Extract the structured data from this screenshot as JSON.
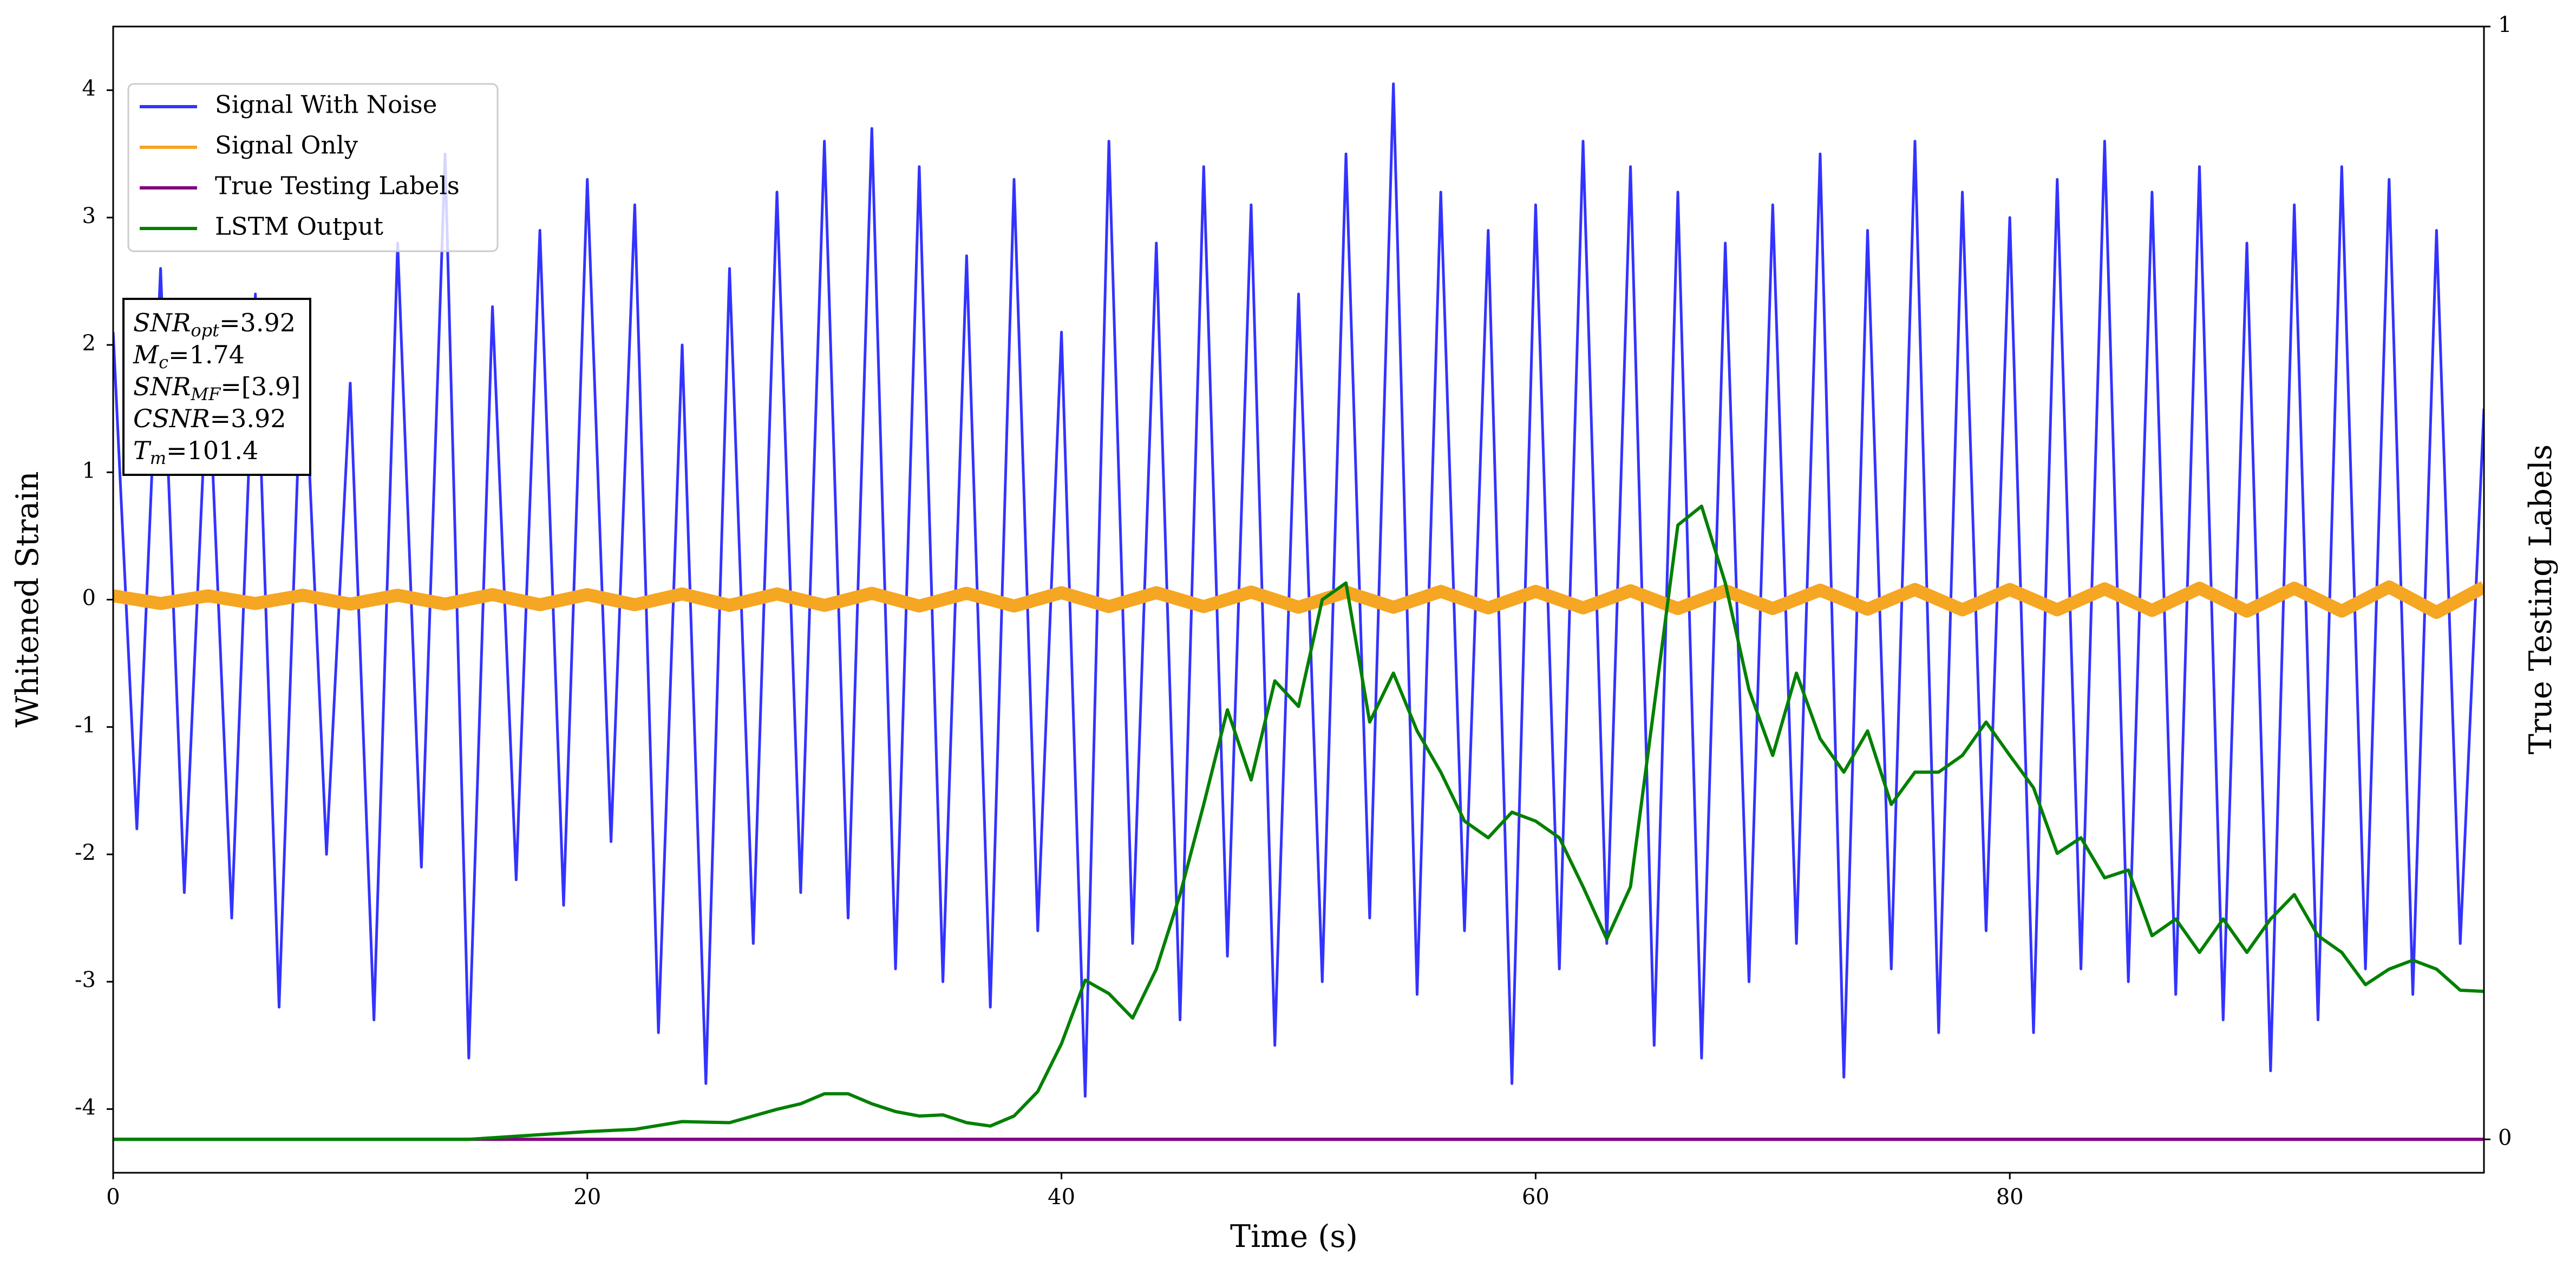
{
  "chart_data": {
    "type": "line",
    "xlabel": "Time (s)",
    "ylabel": "Whitened Strain",
    "y2label": "True Testing Labels",
    "xlim": [
      0,
      100
    ],
    "ylim": [
      -4.5,
      4.5
    ],
    "y2lim": [
      -0.03,
      1
    ],
    "xticks": [
      0,
      20,
      40,
      60,
      80
    ],
    "yticks": [
      -4,
      -3,
      -2,
      -1,
      0,
      1,
      2,
      3,
      4
    ],
    "y2ticks": [
      0,
      1
    ],
    "legend": "upper left",
    "series": [
      {
        "name": "Signal With Noise",
        "color": "#3333ff",
        "x": [
          0,
          1,
          2,
          3,
          4,
          5,
          6,
          7,
          8,
          9,
          10,
          11,
          12,
          13,
          14,
          15,
          16,
          17,
          18,
          19,
          20,
          21,
          22,
          23,
          24,
          25,
          26,
          27,
          28,
          29,
          30,
          31,
          32,
          33,
          34,
          35,
          36,
          37,
          38,
          39,
          40,
          41,
          42,
          43,
          44,
          45,
          46,
          47,
          48,
          49,
          50,
          51,
          52,
          53,
          54,
          55,
          56,
          57,
          58,
          59,
          60,
          61,
          62,
          63,
          64,
          65,
          66,
          67,
          68,
          69,
          70,
          71,
          72,
          73,
          74,
          75,
          76,
          77,
          78,
          79,
          80,
          81,
          82,
          83,
          84,
          85,
          86,
          87,
          88,
          89,
          90,
          91,
          92,
          93,
          94,
          95,
          96,
          97,
          98,
          99,
          100
        ],
        "values": [
          2.1,
          -1.8,
          2.6,
          -2.3,
          1.9,
          -2.5,
          2.4,
          -3.2,
          2.2,
          -2.0,
          1.7,
          -3.3,
          2.8,
          -2.1,
          3.5,
          -3.6,
          2.3,
          -2.2,
          2.9,
          -2.4,
          3.3,
          -1.9,
          3.1,
          -3.4,
          2.0,
          -3.8,
          2.6,
          -2.7,
          3.2,
          -2.3,
          3.6,
          -2.5,
          3.7,
          -2.9,
          3.4,
          -3.0,
          2.7,
          -3.2,
          3.3,
          -2.6,
          2.1,
          -3.9,
          3.6,
          -2.7,
          2.8,
          -3.3,
          3.4,
          -2.8,
          3.1,
          -3.5,
          2.4,
          -3.0,
          3.5,
          -2.5,
          4.05,
          -3.1,
          3.2,
          -2.6,
          2.9,
          -3.8,
          3.1,
          -2.9,
          3.6,
          -2.7,
          3.4,
          -3.5,
          3.2,
          -3.6,
          2.8,
          -3.0,
          3.1,
          -2.7,
          3.5,
          -3.75,
          2.9,
          -2.9,
          3.6,
          -3.4,
          3.2,
          -2.6,
          3.0,
          -3.4,
          3.3,
          -2.9,
          3.6,
          -3.0,
          3.2,
          -3.1,
          3.4,
          -3.3,
          2.8,
          -3.7,
          3.1,
          -3.3,
          3.4,
          -2.9,
          3.3,
          -3.1,
          2.9,
          -2.7,
          1.5
        ]
      },
      {
        "name": "Signal Only",
        "color": "#f5a623",
        "x": [
          0,
          2,
          4,
          6,
          8,
          10,
          12,
          14,
          16,
          18,
          20,
          22,
          24,
          26,
          28,
          30,
          32,
          34,
          36,
          38,
          40,
          42,
          44,
          46,
          48,
          50,
          52,
          54,
          56,
          58,
          60,
          62,
          64,
          66,
          68,
          70,
          72,
          74,
          76,
          78,
          80,
          82,
          84,
          86,
          88,
          90,
          92,
          94,
          96,
          98,
          100
        ],
        "values": [
          0.03,
          -0.03,
          0.03,
          -0.03,
          0.035,
          -0.035,
          0.035,
          -0.035,
          0.04,
          -0.04,
          0.04,
          -0.04,
          0.045,
          -0.045,
          0.045,
          -0.045,
          0.05,
          -0.05,
          0.05,
          -0.05,
          0.055,
          -0.055,
          0.055,
          -0.055,
          0.06,
          -0.06,
          0.06,
          -0.06,
          0.065,
          -0.065,
          0.065,
          -0.065,
          0.07,
          -0.07,
          0.07,
          -0.07,
          0.075,
          -0.075,
          0.08,
          -0.08,
          0.08,
          -0.08,
          0.085,
          -0.085,
          0.09,
          -0.09,
          0.09,
          -0.09,
          0.1,
          -0.1,
          0.1
        ]
      },
      {
        "name": "True Testing Labels",
        "color": "#800080",
        "axis": "y2",
        "x": [
          0,
          100
        ],
        "values": [
          0,
          0
        ]
      },
      {
        "name": "LSTM Output",
        "color": "#008000",
        "axis": "y2",
        "x": [
          0,
          5,
          10,
          15,
          20,
          22,
          24,
          26,
          28,
          29,
          30,
          31,
          32,
          33,
          34,
          35,
          36,
          37,
          38,
          39,
          40,
          41,
          42,
          43,
          44,
          45,
          46,
          47,
          48,
          49,
          50,
          51,
          52,
          53,
          54,
          55,
          56,
          57,
          58,
          59,
          60,
          61,
          62,
          63,
          64,
          65,
          66,
          67,
          68,
          69,
          70,
          71,
          72,
          73,
          74,
          75,
          76,
          77,
          78,
          79,
          80,
          81,
          82,
          83,
          84,
          85,
          86,
          87,
          88,
          89,
          90,
          91,
          92,
          93,
          94,
          95,
          96,
          97,
          98,
          99,
          100
        ],
        "values": [
          0,
          0,
          0,
          0,
          0.007,
          0.009,
          0.016,
          0.015,
          0.027,
          0.032,
          0.041,
          0.041,
          0.032,
          0.025,
          0.021,
          0.022,
          0.015,
          0.012,
          0.021,
          0.043,
          0.086,
          0.143,
          0.131,
          0.109,
          0.153,
          0.22,
          0.301,
          0.386,
          0.323,
          0.412,
          0.389,
          0.485,
          0.5,
          0.375,
          0.419,
          0.367,
          0.33,
          0.286,
          0.271,
          0.294,
          0.286,
          0.271,
          0.227,
          0.18,
          0.227,
          0.389,
          0.552,
          0.569,
          0.5,
          0.404,
          0.345,
          0.419,
          0.36,
          0.33,
          0.367,
          0.301,
          0.33,
          0.33,
          0.345,
          0.375,
          0.345,
          0.316,
          0.257,
          0.271,
          0.235,
          0.242,
          0.183,
          0.198,
          0.168,
          0.198,
          0.168,
          0.198,
          0.22,
          0.183,
          0.168,
          0.139,
          0.153,
          0.161,
          0.153,
          0.134,
          0.133
        ]
      }
    ],
    "annotation": [
      {
        "main": "SNR",
        "sub": "opt",
        "rest": "=3.92"
      },
      {
        "main": "M",
        "sub": "c",
        "rest": "=1.74"
      },
      {
        "main": "SNR",
        "sub": "MF",
        "rest": "=[3.9]"
      },
      {
        "main": "CSNR",
        "sub": "",
        "rest": "=3.92"
      },
      {
        "main": "T",
        "sub": "m",
        "rest": "=101.4"
      }
    ]
  }
}
